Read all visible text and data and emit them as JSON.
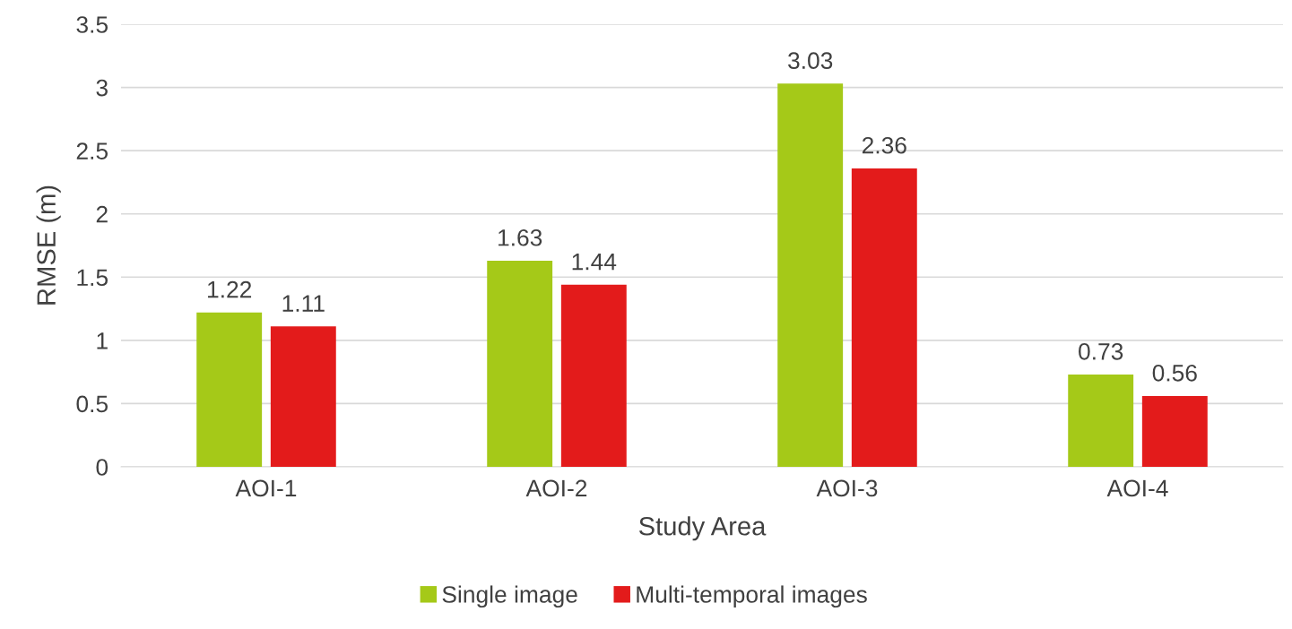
{
  "chart_data": {
    "type": "bar",
    "xlabel": "Study Area",
    "ylabel": "RMSE (m)",
    "categories": [
      "AOI-1",
      "AOI-2",
      "AOI-3",
      "AOI-4"
    ],
    "series": [
      {
        "name": "Single image",
        "color": "#a5c918",
        "values": [
          1.22,
          1.63,
          3.03,
          0.73
        ]
      },
      {
        "name": "Multi-temporal images",
        "color": "#e31b1b",
        "values": [
          1.11,
          1.44,
          2.36,
          0.56
        ]
      }
    ],
    "ylim": [
      0,
      3.5
    ],
    "yticks": [
      0,
      0.5,
      1,
      1.5,
      2,
      2.5,
      3,
      3.5
    ],
    "grid": "y",
    "legend": "bottom",
    "data_labels": true
  }
}
